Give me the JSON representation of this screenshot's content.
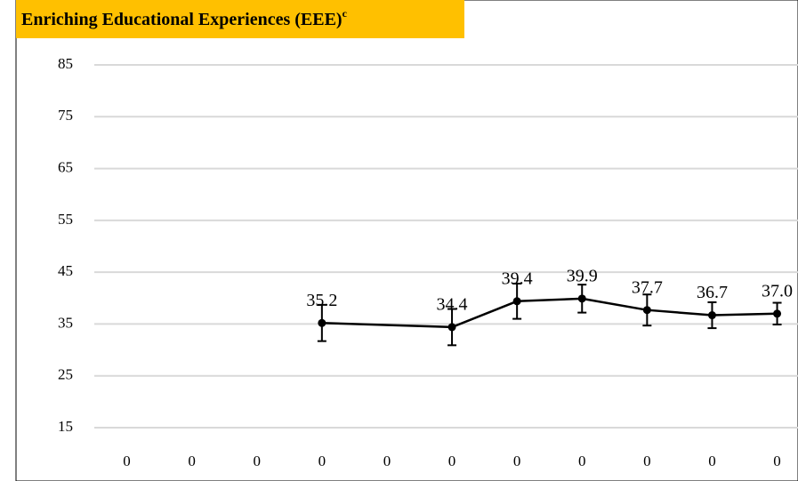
{
  "chart_data": {
    "type": "line",
    "title": "Enriching Educational Experiences (EEE)",
    "title_superscript": "c",
    "categories": [
      "0",
      "0",
      "0",
      "0",
      "0",
      "0",
      "0",
      "0",
      "0",
      "0",
      "0"
    ],
    "series": [
      {
        "color": "#000000",
        "values": [
          null,
          null,
          null,
          35.2,
          null,
          34.4,
          39.4,
          39.9,
          37.7,
          36.7,
          37.0
        ],
        "value_labels": [
          null,
          null,
          null,
          "35.2",
          null,
          "34.4",
          "39.4",
          "39.9",
          "37.7",
          "36.7",
          "37.0"
        ],
        "errors": [
          null,
          null,
          null,
          3.5,
          null,
          3.5,
          3.4,
          2.7,
          3.0,
          2.5,
          2.1
        ]
      }
    ],
    "ylim": [
      15,
      85
    ],
    "yticks": [
      15,
      25,
      35,
      45,
      55,
      65,
      75,
      85
    ],
    "grid": true
  }
}
